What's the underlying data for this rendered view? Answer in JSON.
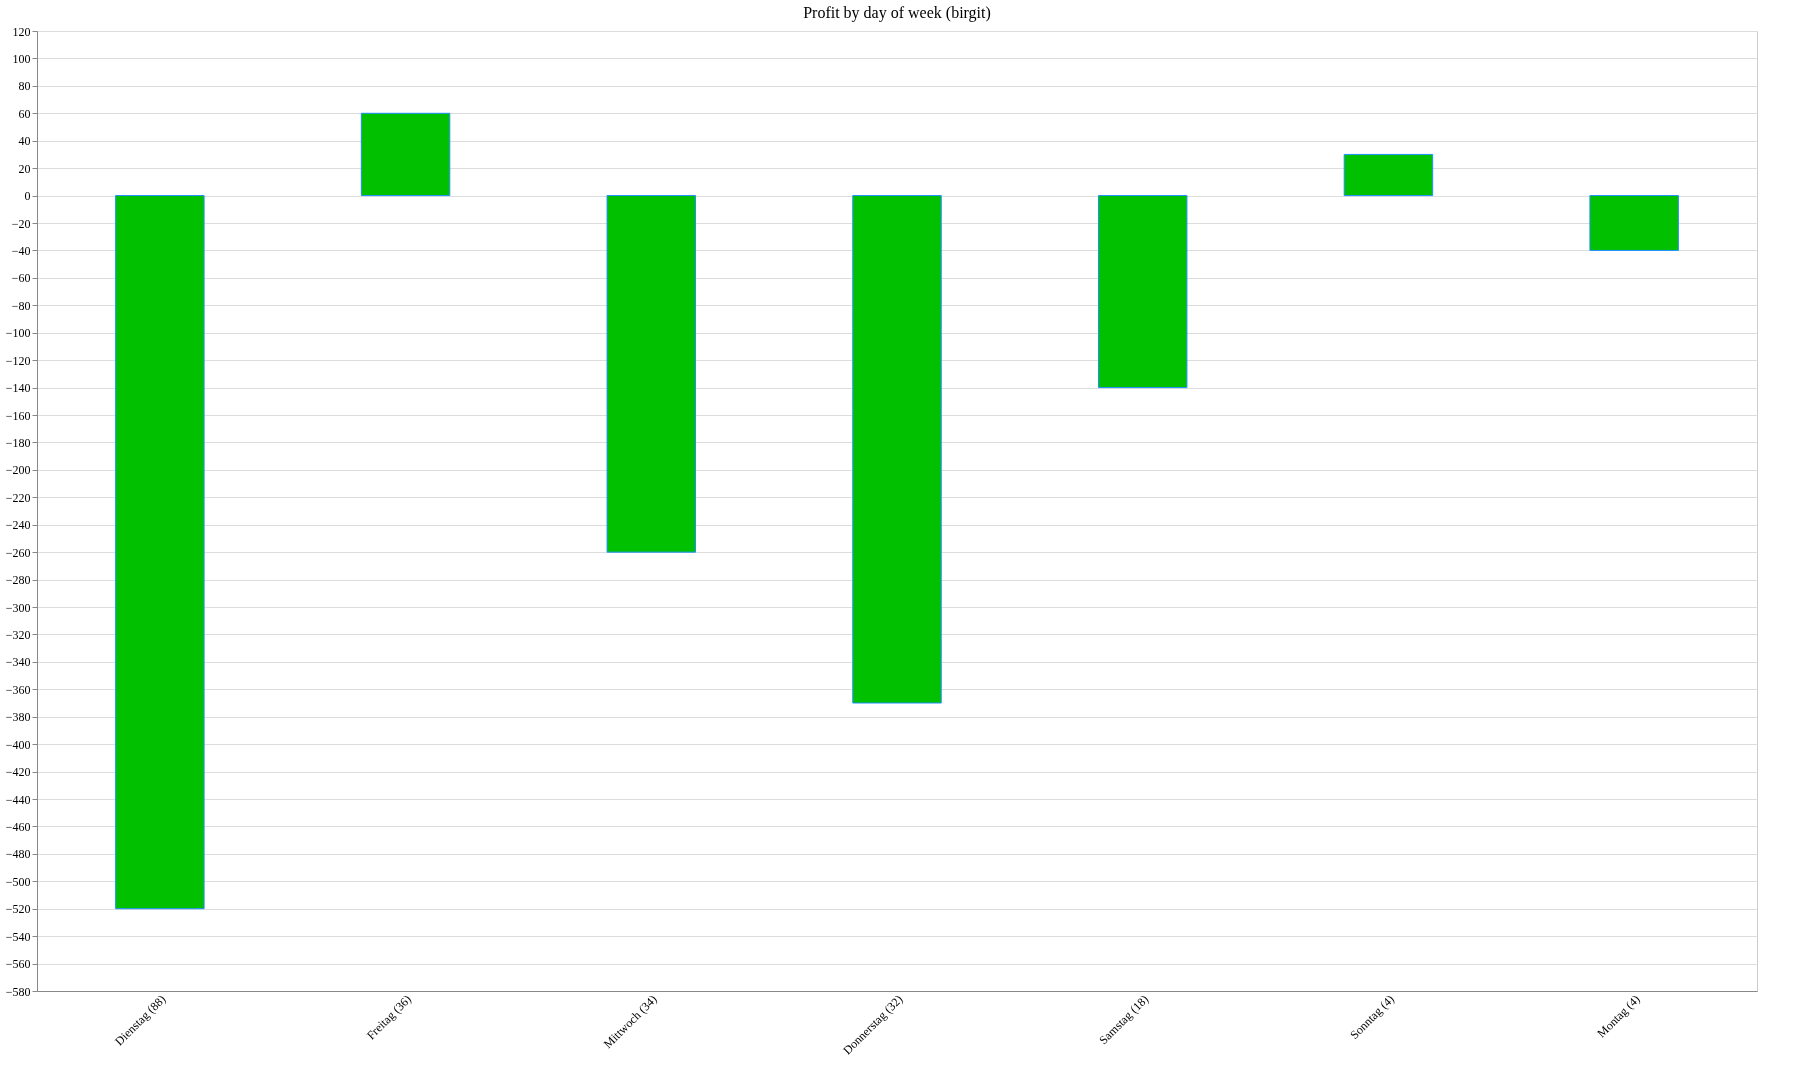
{
  "chart_data": {
    "type": "bar",
    "title": "Profit by day of week  (birgit)",
    "categories": [
      "Dienstag (88)",
      "Freitag (36)",
      "Mittwoch (34)",
      "Donnerstag (32)",
      "Samstag (18)",
      "Sonntag (4)",
      "Montag (4)"
    ],
    "values": [
      -520,
      60,
      -260,
      -370,
      -140,
      30,
      -40
    ],
    "color": "#00c000",
    "ylim": [
      -580,
      120
    ],
    "yticks": [
      -580,
      -560,
      -540,
      -520,
      -500,
      -480,
      -460,
      -440,
      -420,
      -400,
      -380,
      -360,
      -340,
      -320,
      -300,
      -280,
      -260,
      -240,
      -220,
      -200,
      -180,
      -160,
      -140,
      -120,
      -100,
      -80,
      -60,
      -40,
      -20,
      0,
      20,
      40,
      60,
      80,
      100,
      120
    ],
    "grid": "y"
  }
}
